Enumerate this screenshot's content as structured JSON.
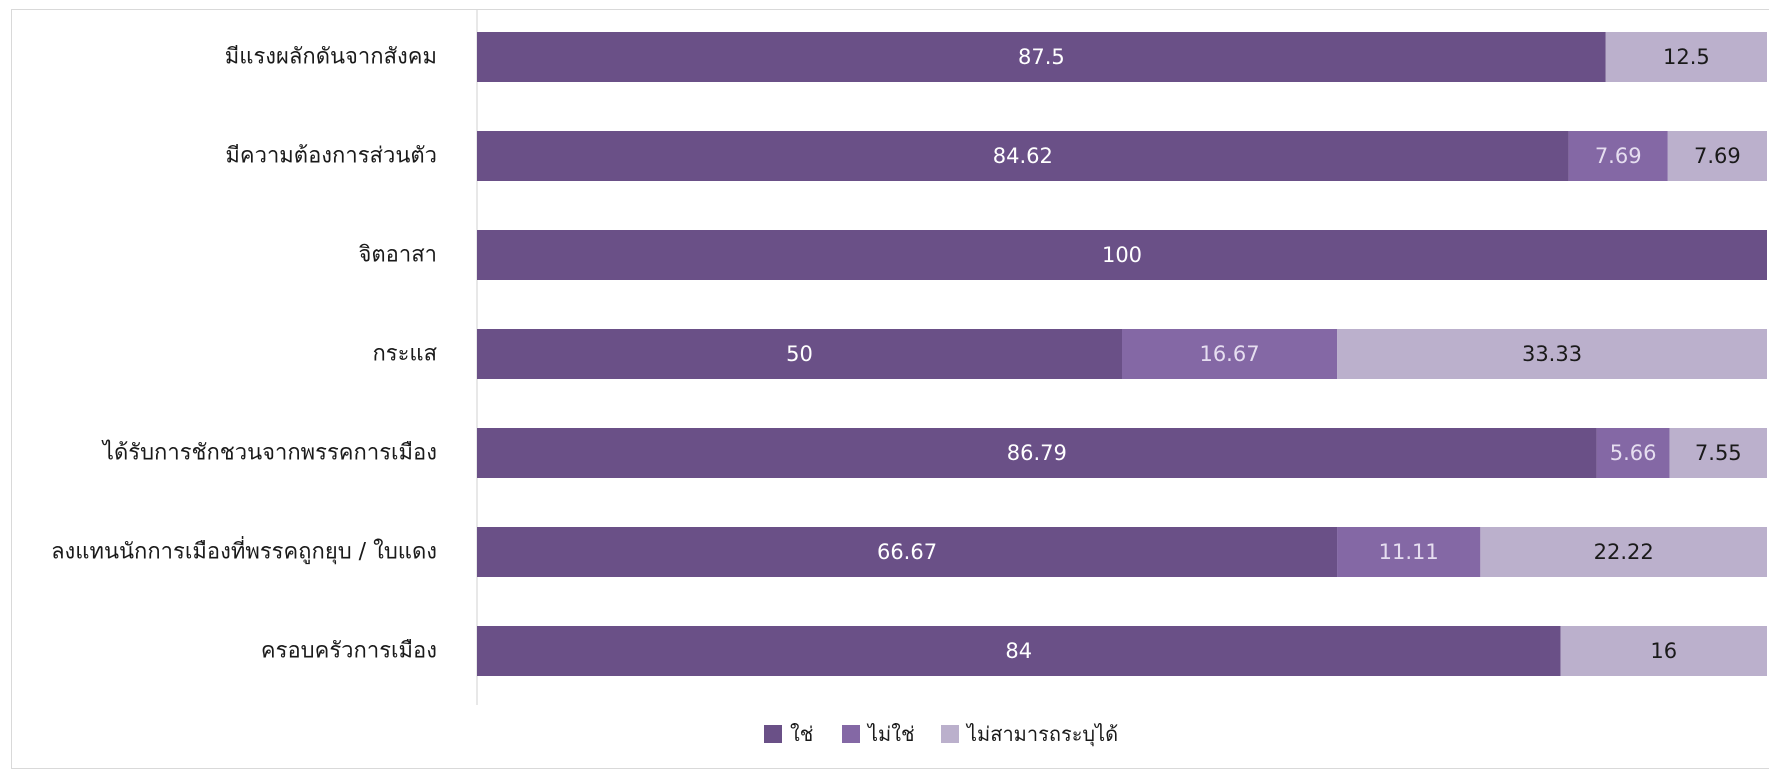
{
  "chart_data": {
    "type": "bar",
    "orientation": "horizontal",
    "stacked": true,
    "categories": [
      "มีแรงผลักดันจากสังคม",
      "มีความต้องการส่วนตัว",
      "จิตอาสา",
      "กระแส",
      "ได้รับการชักชวนจากพรรคการเมือง",
      "ลงแทนนักการเมืองที่พรรคถูกยุบ / ใบแดง",
      "ครอบครัวการเมือง"
    ],
    "series": [
      {
        "name": "ใช่",
        "color": "#6a5087",
        "label_color": "#ffffff",
        "values": [
          87.5,
          84.62,
          100,
          50,
          86.79,
          66.67,
          84
        ],
        "labels": [
          "87.5",
          "84.62",
          "100",
          "50",
          "86.79",
          "66.67",
          "84"
        ]
      },
      {
        "name": "ไม่ใช่",
        "color": "#8468a5",
        "label_color": "#e6def0",
        "values": [
          0,
          7.69,
          0,
          16.67,
          5.66,
          11.11,
          0
        ],
        "labels": [
          "",
          "7.69",
          "",
          "16.67",
          "5.66",
          "11.11",
          ""
        ]
      },
      {
        "name": "ไม่สามารถระบุได้",
        "color": "#bbb0cc",
        "label_color": "#1a1a1a",
        "values": [
          12.5,
          7.69,
          0,
          33.33,
          7.55,
          22.22,
          16
        ],
        "labels": [
          "12.5",
          "7.69",
          "",
          "33.33",
          "7.55",
          "22.22",
          "16"
        ]
      }
    ],
    "xlim": [
      0,
      100
    ],
    "grid": false,
    "legend_position": "bottom"
  }
}
